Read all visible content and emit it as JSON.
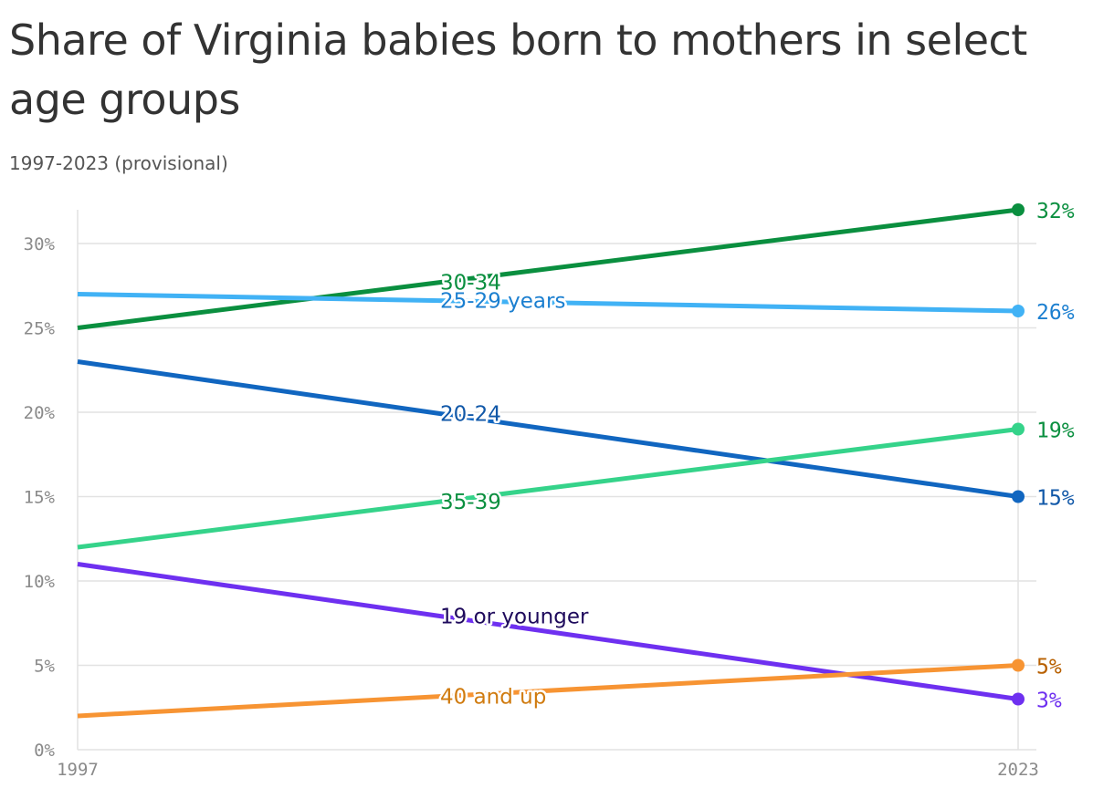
{
  "chart_data": {
    "type": "line",
    "title": "Share of Virginia babies born to mothers in select age groups",
    "subtitle": "1997-2023 (provisional)",
    "x": [
      "1997",
      "2023"
    ],
    "ylim": [
      0,
      32
    ],
    "yticks": [
      "0%",
      "5%",
      "10%",
      "15%",
      "20%",
      "25%",
      "30%"
    ],
    "ytick_values": [
      0,
      5,
      10,
      15,
      20,
      25,
      30
    ],
    "grid": true,
    "series": [
      {
        "name": "30-34",
        "values": [
          25,
          32
        ],
        "end_label": "32%",
        "color": "#0a8f3f",
        "label_color": "#0a8f3f"
      },
      {
        "name": "25-29 years",
        "values": [
          27,
          26
        ],
        "end_label": "26%",
        "color": "#41b2f5",
        "label_color": "#1b7fd0"
      },
      {
        "name": "20-24",
        "values": [
          23,
          15
        ],
        "end_label": "15%",
        "color": "#1166c0",
        "label_color": "#1158a8"
      },
      {
        "name": "35-39",
        "values": [
          12,
          19
        ],
        "end_label": "19%",
        "color": "#35d38a",
        "label_color": "#0a8f3f"
      },
      {
        "name": "19 or younger",
        "values": [
          11,
          3
        ],
        "end_label": "3%",
        "color": "#6e30f0",
        "label_color": "#1e0a5c",
        "end_color": "#6e30f0"
      },
      {
        "name": "40 and up",
        "values": [
          2,
          5
        ],
        "end_label": "5%",
        "color": "#f79433",
        "label_color": "#d07b0f",
        "end_color": "#b86000"
      }
    ]
  }
}
